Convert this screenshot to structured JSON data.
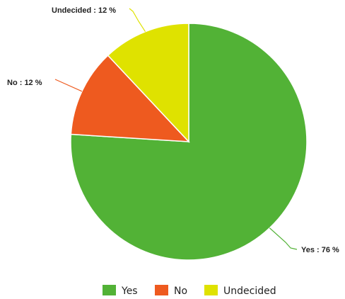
{
  "chart_data": {
    "type": "pie",
    "categories": [
      "Yes",
      "No",
      "Undecided"
    ],
    "values": [
      76,
      12,
      12
    ],
    "unit": "%",
    "colors": [
      "#52b236",
      "#ee5a1f",
      "#dfe200"
    ],
    "data_labels": [
      "Yes : 76 %",
      "No : 12 %",
      "Undecided : 12 %"
    ],
    "start_angle_deg": 0,
    "direction": "clockwise",
    "legend": {
      "position": "bottom",
      "items": [
        "Yes",
        "No",
        "Undecided"
      ]
    }
  }
}
